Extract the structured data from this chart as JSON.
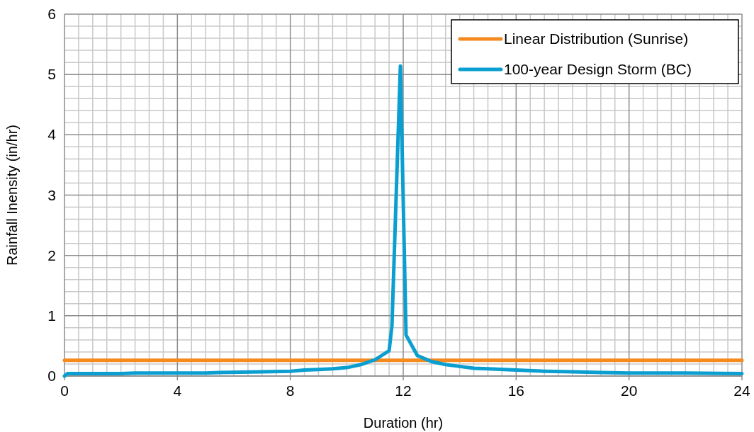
{
  "chart_data": {
    "type": "line",
    "xlabel": "Duration (hr)",
    "ylabel": "Rainfall Inensity (in/hr)",
    "xlim": [
      0,
      24
    ],
    "xticks": [
      0,
      4,
      8,
      12,
      16,
      20,
      24
    ],
    "ylim": [
      0,
      6
    ],
    "yticks": [
      0,
      1,
      2,
      3,
      4,
      5,
      6
    ],
    "grid": true,
    "legend": "top right",
    "marker": "none",
    "line_style": "solid",
    "series": [
      {
        "name": "Linear Distribution (Sunrise)",
        "color": "#f58a1f",
        "x": [
          0,
          24
        ],
        "values": [
          0.26,
          0.26
        ]
      },
      {
        "name": "100-year Design Storm (BC)",
        "color": "#0a9fd0",
        "x": [
          0,
          0.1,
          2,
          2.5,
          5,
          5.5,
          7,
          8,
          8.5,
          9,
          9.5,
          10,
          10.5,
          11,
          11.5,
          11.6,
          11.9,
          12.1,
          12.5,
          13,
          13.5,
          14,
          14.5,
          15,
          16,
          17,
          18,
          19,
          20,
          22,
          24
        ],
        "values": [
          0,
          0.04,
          0.04,
          0.05,
          0.05,
          0.06,
          0.07,
          0.08,
          0.1,
          0.11,
          0.12,
          0.14,
          0.19,
          0.27,
          0.42,
          0.83,
          5.14,
          0.68,
          0.34,
          0.24,
          0.19,
          0.16,
          0.13,
          0.12,
          0.1,
          0.08,
          0.07,
          0.06,
          0.05,
          0.05,
          0.04
        ]
      }
    ]
  }
}
